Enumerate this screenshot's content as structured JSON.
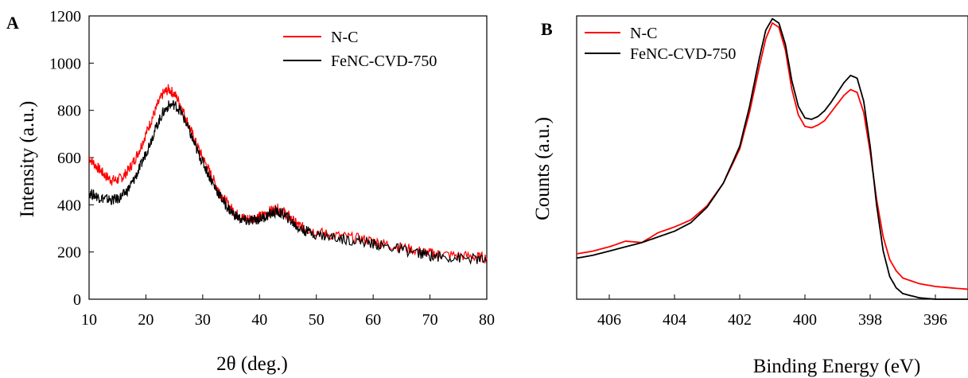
{
  "colors": {
    "nc": "#ff0000",
    "fenc": "#000000",
    "axis": "#000000"
  },
  "chart_data": [
    {
      "panel_label": "A",
      "type": "line",
      "xlabel": "2θ (deg.)",
      "ylabel": "Intensity (a.u.)",
      "xlim": [
        10,
        80
      ],
      "ylim": [
        0,
        1200
      ],
      "xticks": [
        10,
        20,
        30,
        40,
        50,
        60,
        70,
        80
      ],
      "yticks": [
        0,
        200,
        400,
        600,
        800,
        1000,
        1200
      ],
      "legend_position": "top-right",
      "series": [
        {
          "name": "N-C",
          "color": "#ff0000",
          "x": [
            10,
            11,
            12,
            13,
            14,
            15,
            16,
            17,
            18,
            19,
            20,
            21,
            22,
            23,
            24,
            25,
            26,
            27,
            28,
            29,
            30,
            31,
            32,
            33,
            34,
            35,
            36,
            37,
            38,
            39,
            40,
            41,
            42,
            43,
            44,
            45,
            46,
            47,
            48,
            50,
            52,
            55,
            58,
            60,
            62,
            65,
            68,
            70,
            72,
            75,
            78,
            80
          ],
          "y": [
            600,
            570,
            545,
            520,
            505,
            505,
            520,
            550,
            590,
            640,
            700,
            760,
            820,
            870,
            890,
            870,
            830,
            770,
            710,
            650,
            600,
            550,
            500,
            455,
            415,
            385,
            360,
            345,
            340,
            345,
            350,
            360,
            375,
            385,
            375,
            355,
            330,
            310,
            300,
            285,
            275,
            265,
            255,
            245,
            235,
            220,
            205,
            195,
            190,
            185,
            180,
            175
          ]
        },
        {
          "name": "FeNC-CVD-750",
          "color": "#000000",
          "x": [
            10,
            11,
            12,
            13,
            14,
            15,
            16,
            17,
            18,
            19,
            20,
            21,
            22,
            23,
            24,
            25,
            26,
            27,
            28,
            29,
            30,
            31,
            32,
            33,
            34,
            35,
            36,
            37,
            38,
            39,
            40,
            41,
            42,
            43,
            44,
            45,
            46,
            47,
            48,
            50,
            52,
            55,
            58,
            60,
            62,
            65,
            68,
            70,
            72,
            75,
            78,
            80
          ],
          "y": [
            450,
            440,
            430,
            425,
            420,
            425,
            440,
            470,
            510,
            560,
            620,
            680,
            740,
            790,
            820,
            825,
            800,
            750,
            690,
            630,
            580,
            530,
            480,
            440,
            400,
            370,
            350,
            335,
            330,
            335,
            340,
            350,
            362,
            370,
            362,
            345,
            320,
            300,
            290,
            275,
            265,
            255,
            245,
            235,
            225,
            210,
            195,
            185,
            180,
            175,
            170,
            165
          ]
        }
      ]
    },
    {
      "panel_label": "B",
      "type": "line",
      "xlabel": "Binding Energy (eV)",
      "ylabel": "Counts (a.u.)",
      "xlim": [
        407,
        395
      ],
      "ylim": [
        0,
        1
      ],
      "xticks": [
        406,
        404,
        402,
        400,
        398,
        396
      ],
      "legend_position": "top-left",
      "series": [
        {
          "name": "N-C",
          "color": "#ff0000",
          "x": [
            407,
            406.5,
            406,
            405.5,
            405,
            404.5,
            404,
            403.5,
            403,
            402.5,
            402,
            401.7,
            401.4,
            401.2,
            401,
            400.8,
            400.6,
            400.4,
            400.2,
            400,
            399.8,
            399.6,
            399.4,
            399.2,
            399,
            398.8,
            398.6,
            398.4,
            398.2,
            398,
            397.8,
            397.6,
            397.4,
            397.2,
            397,
            396.5,
            396,
            395.5,
            395
          ],
          "y": [
            0.16,
            0.17,
            0.185,
            0.205,
            0.2,
            0.235,
            0.255,
            0.28,
            0.33,
            0.41,
            0.53,
            0.66,
            0.82,
            0.92,
            0.975,
            0.96,
            0.88,
            0.74,
            0.65,
            0.61,
            0.605,
            0.615,
            0.63,
            0.66,
            0.69,
            0.72,
            0.74,
            0.73,
            0.66,
            0.52,
            0.35,
            0.22,
            0.14,
            0.1,
            0.075,
            0.055,
            0.045,
            0.04,
            0.035
          ]
        },
        {
          "name": "FeNC-CVD-750",
          "color": "#000000",
          "x": [
            407,
            406.5,
            406,
            405.5,
            405,
            404.5,
            404,
            403.5,
            403,
            402.5,
            402,
            401.7,
            401.4,
            401.2,
            401,
            400.8,
            400.6,
            400.4,
            400.2,
            400,
            399.8,
            399.6,
            399.4,
            399.2,
            399,
            398.8,
            398.6,
            398.4,
            398.2,
            398,
            397.8,
            397.6,
            397.4,
            397.2,
            397,
            396.5,
            396,
            395.5,
            395
          ],
          "y": [
            0.145,
            0.155,
            0.17,
            0.185,
            0.2,
            0.22,
            0.24,
            0.27,
            0.325,
            0.41,
            0.54,
            0.68,
            0.85,
            0.95,
            0.99,
            0.975,
            0.9,
            0.77,
            0.68,
            0.64,
            0.635,
            0.645,
            0.665,
            0.695,
            0.73,
            0.765,
            0.79,
            0.78,
            0.7,
            0.54,
            0.33,
            0.17,
            0.08,
            0.04,
            0.02,
            0.005,
            0.0,
            0.0,
            0.0
          ]
        }
      ]
    }
  ]
}
